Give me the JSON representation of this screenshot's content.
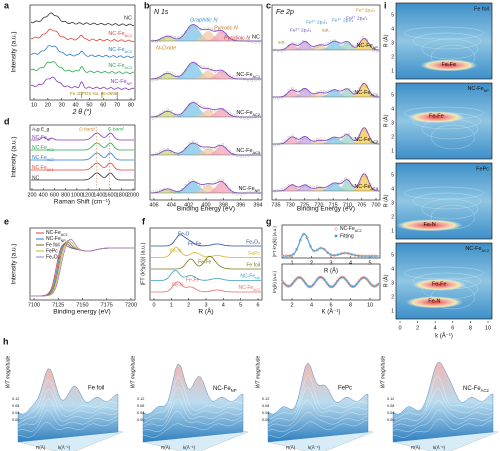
{
  "panels": {
    "a": {
      "letter": "a",
      "ylabel": "Intensity (a.u.)",
      "xlabel": "2 θ (°)",
      "xticks": [
        "10",
        "20",
        "30",
        "40",
        "50",
        "60",
        "70",
        "80"
      ],
      "curves": [
        "NC",
        {
          "t": "NC-Fe",
          "s": "AC1"
        },
        {
          "t": "NC-Fe",
          "s": "AC2"
        },
        {
          "t": "NC-Fe",
          "s": "AC3"
        },
        {
          "t": "NC-Fe",
          "s": "NP"
        }
      ],
      "reference": "Fe JCPDS No. 06-0696"
    },
    "b": {
      "letter": "b",
      "title": "N 1s",
      "xlabel": "Binding Energy (eV)",
      "xticks": [
        "406",
        "404",
        "402",
        "400",
        "398",
        "396",
        "394"
      ],
      "peaks": [
        "N-Oxide",
        "Graphitic N",
        "Pyrrolic N",
        "Pyridinic N"
      ],
      "curves": [
        "NC",
        {
          "t": "NC-Fe",
          "s": "AC1"
        },
        {
          "t": "NC-Fe",
          "s": "AC2"
        },
        {
          "t": "NC-Fe",
          "s": "AC3"
        },
        {
          "t": "NC-Fe",
          "s": "NP"
        }
      ]
    },
    "c": {
      "letter": "c",
      "title": "Fe 2p",
      "xlabel": "Binding Energy (eV)",
      "xticks": [
        "735",
        "730",
        "725",
        "720",
        "715",
        "710",
        "705",
        "700"
      ],
      "peaks": [
        "sat.",
        "Fe²⁺ 2p₁/₂",
        "Fe³⁺ 2p₁/₂",
        "sat.",
        "Fe³⁺ 2p₃/₂",
        "Fe²⁺ 2p₃/₂",
        "Fe⁰ 2p₃/₂"
      ],
      "curves": [
        {
          "t": "NC-Fe",
          "s": "NP"
        },
        {
          "t": "NC-Fe",
          "s": "AC1"
        },
        {
          "t": "NC-Fe",
          "s": "AC2"
        },
        {
          "t": "NC-Fe",
          "s": "AC3"
        }
      ]
    },
    "d": {
      "letter": "d",
      "ylabel": "Intensity (a.u.)",
      "xlabel": "Raman Shift (cm⁻¹)",
      "xticks": [
        "200",
        "400",
        "600",
        "800",
        "1000",
        "1200",
        "1400",
        "1600",
        "1800",
        "2000"
      ],
      "bands": [
        "D band",
        "G band"
      ],
      "modes": "A₁g E_g",
      "curves": [
        {
          "t": "NC-Fe",
          "s": "NP"
        },
        {
          "t": "NC-Fe",
          "s": "AC3"
        },
        {
          "t": "NC-Fe",
          "s": "AC2"
        },
        {
          "t": "NC-Fe",
          "s": "AC1"
        },
        "NC"
      ]
    },
    "e": {
      "letter": "e",
      "ylabel": "Intensity (a.u.)",
      "xlabel": "Binding energy (eV)",
      "xticks": [
        "7100",
        "7125",
        "7150",
        "7175",
        "7200"
      ],
      "legend": [
        {
          "t": "NC-Fe",
          "s": "AC2"
        },
        {
          "t": "NC-Fe",
          "s": "NP"
        },
        "Fe foil",
        "FePc",
        "Fe₂O₃"
      ]
    },
    "f": {
      "letter": "f",
      "ylabel": "|FT (k²χ(k))| (a.u.)",
      "xlabel": "R (Å)",
      "xticks": [
        "0",
        "1",
        "2",
        "3",
        "4",
        "5",
        "6"
      ],
      "annotations": [
        "Fe-O",
        "Fe-N",
        "Fe-Fe",
        "Fe-Fe",
        "Fe-N",
        "Fe-Fe"
      ],
      "curves": [
        "Fe₂O₃",
        "FePc",
        "Fe foil",
        {
          "t": "NC-Fe",
          "s": "NP"
        },
        {
          "t": "NC-Fe",
          "s": "AC2"
        }
      ]
    },
    "g": {
      "letter": "g",
      "legend": [
        {
          "t": "NC-Fe",
          "s": "AC2"
        },
        "Fitting"
      ],
      "top": {
        "ylabel": "|FT k³χ(k)| (a.u.)",
        "xlabel": "R (Å)",
        "xticks": [
          "1",
          "2",
          "3",
          "4",
          "5"
        ]
      },
      "bottom": {
        "ylabel": "k³χ(k) (a.u.)",
        "xlabel": "K (Å⁻¹)",
        "xticks": [
          "2",
          "4",
          "6",
          "8",
          "10"
        ]
      }
    },
    "i": {
      "letter": "i",
      "ylabel": "R (Å)",
      "xlabel": "k (Å⁻¹)",
      "yticks": [
        "1",
        "2",
        "3",
        "4",
        "5"
      ],
      "xticks": [
        "0",
        "2",
        "4",
        "6",
        "8",
        "10"
      ],
      "maps": [
        {
          "name": "Fe foil",
          "spots": [
            "Fe-Fe"
          ]
        },
        {
          "name": {
            "t": "NC-Fe",
            "s": "NP"
          },
          "spots": [
            "Fe-Fe"
          ]
        },
        {
          "name": "FePc",
          "spots": [
            "Fe-N"
          ]
        },
        {
          "name": {
            "t": "NC-Fe",
            "s": "AC2"
          },
          "spots": [
            "Fe-Fe",
            "Fe-N"
          ]
        }
      ]
    },
    "h": {
      "letter": "h",
      "zlabel": "WT magnitude",
      "rlabel": "R(Å)",
      "klabel": "k(Å⁻¹)",
      "zticks": [
        "0.00",
        "0.04",
        "0.08",
        "0.12"
      ],
      "items": [
        "Fe foil",
        {
          "t": "NC-Fe",
          "s": "NP"
        },
        "FePc",
        {
          "t": "NC-Fe",
          "s": "AC2"
        }
      ]
    }
  }
}
